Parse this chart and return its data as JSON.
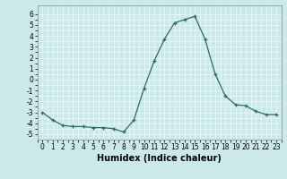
{
  "x": [
    0,
    1,
    2,
    3,
    4,
    5,
    6,
    7,
    8,
    9,
    10,
    11,
    12,
    13,
    14,
    15,
    16,
    17,
    18,
    19,
    20,
    21,
    22,
    23
  ],
  "y": [
    -3.0,
    -3.7,
    -4.2,
    -4.3,
    -4.3,
    -4.4,
    -4.4,
    -4.5,
    -4.8,
    -3.7,
    -0.8,
    1.7,
    3.7,
    5.2,
    5.5,
    5.8,
    3.7,
    0.5,
    -1.5,
    -2.3,
    -2.4,
    -2.9,
    -3.2,
    -3.2
  ],
  "xlabel": "Humidex (Indice chaleur)",
  "ylim": [
    -5.5,
    6.8
  ],
  "xlim": [
    -0.5,
    23.5
  ],
  "yticks": [
    -5,
    -4,
    -3,
    -2,
    -1,
    0,
    1,
    2,
    3,
    4,
    5,
    6
  ],
  "xticks": [
    0,
    1,
    2,
    3,
    4,
    5,
    6,
    7,
    8,
    9,
    10,
    11,
    12,
    13,
    14,
    15,
    16,
    17,
    18,
    19,
    20,
    21,
    22,
    23
  ],
  "line_color": "#2e6b5e",
  "marker": "+",
  "bg_color": "#cce9ea",
  "grid_color": "#e8f8f8",
  "tick_fontsize": 5.5,
  "xlabel_fontsize": 7
}
